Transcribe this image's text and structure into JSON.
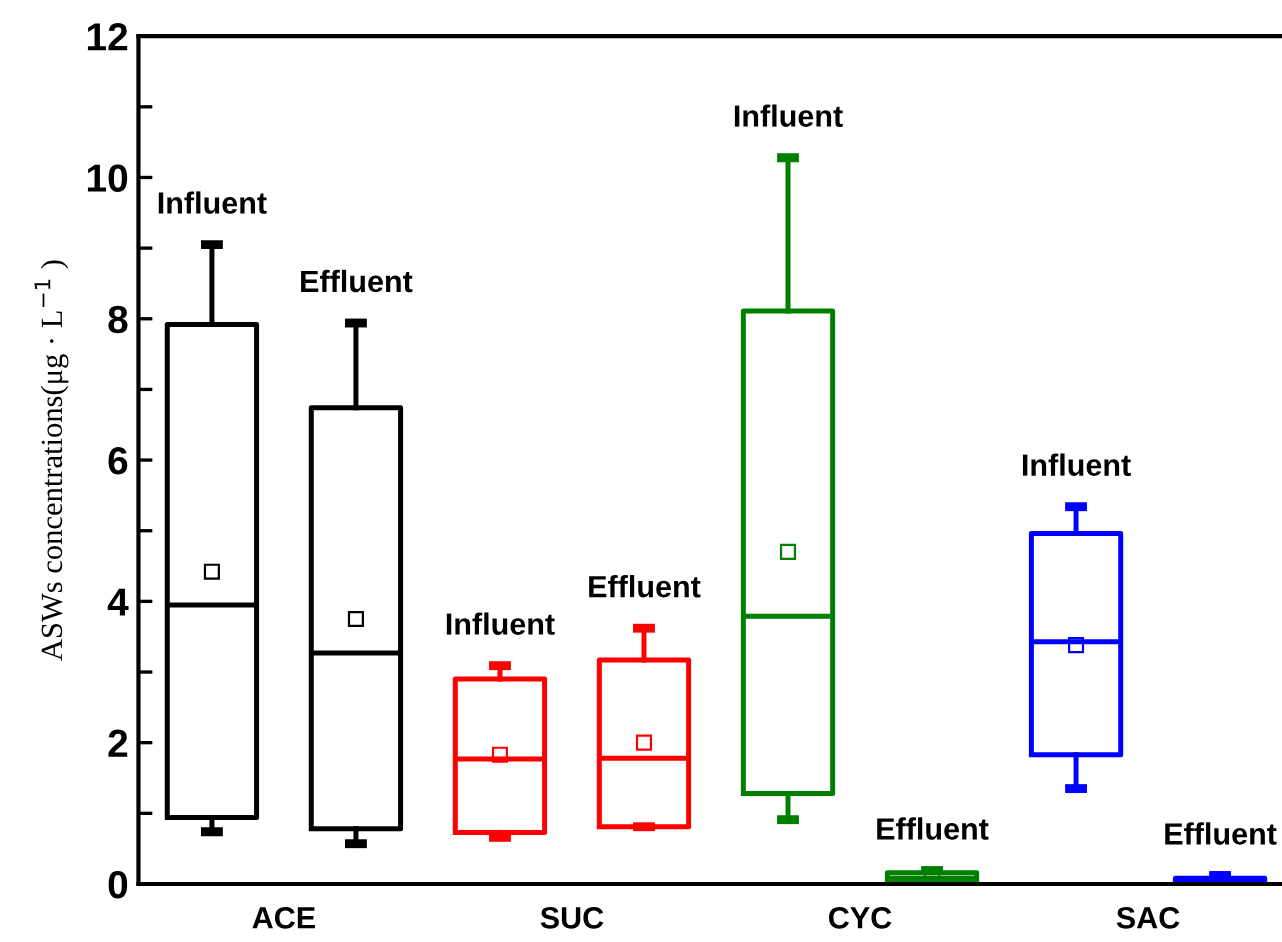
{
  "chart_data": {
    "type": "box",
    "ylabel": "ASWs concentrations(μg · L$^{−1}$ )",
    "categories": [
      "ACE",
      "SUC",
      "CYC",
      "SAC"
    ],
    "series": [
      {
        "name": "Influent",
        "colors": [
          "#000000",
          "#ff0000",
          "#008000",
          "#0000ff"
        ],
        "boxes": [
          {
            "low": 0.74,
            "q1": 0.94,
            "median": 3.95,
            "q3": 7.92,
            "high": 9.05,
            "mean": 4.42
          },
          {
            "low": 0.66,
            "q1": 0.73,
            "median": 1.77,
            "q3": 2.9,
            "high": 3.09,
            "mean": 1.83
          },
          {
            "low": 0.91,
            "q1": 1.28,
            "median": 3.79,
            "q3": 8.11,
            "high": 10.28,
            "mean": 4.7
          },
          {
            "low": 1.35,
            "q1": 1.83,
            "median": 3.43,
            "q3": 4.96,
            "high": 5.34,
            "mean": 3.38
          }
        ]
      },
      {
        "name": "Effluent",
        "colors": [
          "#000000",
          "#ff0000",
          "#008000",
          "#0000ff"
        ],
        "boxes": [
          {
            "low": 0.57,
            "q1": 0.78,
            "median": 3.27,
            "q3": 6.74,
            "high": 7.94,
            "mean": 3.75
          },
          {
            "low": 0.81,
            "q1": 0.81,
            "median": 1.78,
            "q3": 3.17,
            "high": 3.62,
            "mean": 2.0
          },
          {
            "low": 0.02,
            "q1": 0.03,
            "median": 0.08,
            "q3": 0.16,
            "high": 0.19,
            "mean": 0.1
          },
          {
            "low": 0.02,
            "q1": 0.02,
            "median": 0.06,
            "q3": 0.08,
            "high": 0.12,
            "mean": 0.06
          }
        ]
      }
    ],
    "ylim": [
      0,
      12
    ],
    "yticks": [
      0,
      {
        "value": 1,
        "label": null
      },
      2,
      {
        "value": 3,
        "label": null
      },
      4,
      {
        "value": 5,
        "label": null
      },
      6,
      {
        "value": 7,
        "label": null
      },
      8,
      {
        "value": 9,
        "label": null
      },
      10,
      {
        "value": 11,
        "label": null
      },
      12
    ],
    "grid": false,
    "legend": false
  }
}
